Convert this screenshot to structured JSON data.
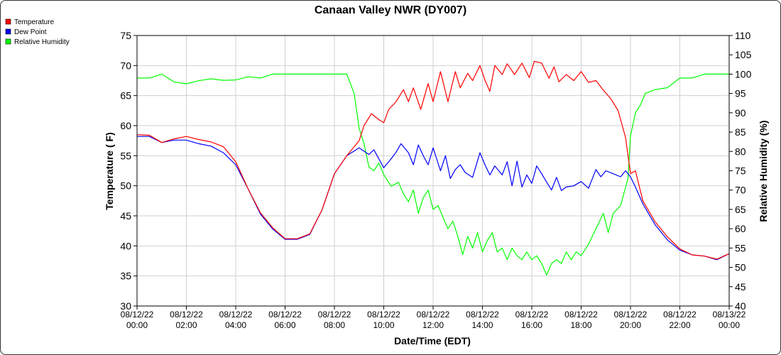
{
  "chart_data": {
    "type": "line",
    "title": "Canaan Valley NWR (DY007)",
    "xlabel": "Date/Time (EDT)",
    "ylabel_left": "Temperature ( F)",
    "ylabel_right": "Relative Humidity (%)",
    "ylim_left": [
      30,
      75
    ],
    "ylim_right": [
      40,
      110
    ],
    "yticks_left": [
      30,
      35,
      40,
      45,
      50,
      55,
      60,
      65,
      70,
      75
    ],
    "yticks_right": [
      40,
      45,
      50,
      55,
      60,
      65,
      70,
      75,
      80,
      85,
      90,
      95,
      100,
      105,
      110
    ],
    "xlim_hours": [
      0,
      24
    ],
    "xticks": [
      {
        "date": "08/12/22",
        "time": "00:00"
      },
      {
        "date": "08/12/22",
        "time": "02:00"
      },
      {
        "date": "08/12/22",
        "time": "04:00"
      },
      {
        "date": "08/12/22",
        "time": "06:00"
      },
      {
        "date": "08/12/22",
        "time": "08:00"
      },
      {
        "date": "08/12/22",
        "time": "10:00"
      },
      {
        "date": "08/12/22",
        "time": "12:00"
      },
      {
        "date": "08/12/22",
        "time": "14:00"
      },
      {
        "date": "08/12/22",
        "time": "16:00"
      },
      {
        "date": "08/12/22",
        "time": "18:00"
      },
      {
        "date": "08/12/22",
        "time": "20:00"
      },
      {
        "date": "08/12/22",
        "time": "22:00"
      },
      {
        "date": "08/13/22",
        "time": "00:00"
      }
    ],
    "grid": true,
    "legend_position": "top-left",
    "series": [
      {
        "name": "Temperature",
        "axis": "left",
        "color": "#ff0000",
        "points": [
          [
            0,
            58.5
          ],
          [
            0.5,
            58.4
          ],
          [
            1,
            57.2
          ],
          [
            1.5,
            57.8
          ],
          [
            2,
            58.2
          ],
          [
            2.5,
            57.7
          ],
          [
            3,
            57.3
          ],
          [
            3.5,
            56.5
          ],
          [
            4,
            54
          ],
          [
            4.5,
            49.5
          ],
          [
            5,
            45.5
          ],
          [
            5.5,
            43
          ],
          [
            6,
            41.2
          ],
          [
            6.5,
            41.2
          ],
          [
            7,
            42
          ],
          [
            7.5,
            46
          ],
          [
            8,
            52
          ],
          [
            8.5,
            55
          ],
          [
            9,
            57.5
          ],
          [
            9.2,
            60
          ],
          [
            9.5,
            62
          ],
          [
            9.8,
            61
          ],
          [
            10,
            60.5
          ],
          [
            10.2,
            62.7
          ],
          [
            10.5,
            64
          ],
          [
            10.8,
            66
          ],
          [
            11,
            64
          ],
          [
            11.2,
            66.3
          ],
          [
            11.5,
            62.7
          ],
          [
            11.8,
            67
          ],
          [
            12,
            64
          ],
          [
            12.3,
            69
          ],
          [
            12.6,
            64
          ],
          [
            12.9,
            69
          ],
          [
            13.1,
            66.3
          ],
          [
            13.4,
            68.7
          ],
          [
            13.6,
            67.5
          ],
          [
            13.9,
            70
          ],
          [
            14.1,
            67.6
          ],
          [
            14.3,
            65.7
          ],
          [
            14.5,
            70
          ],
          [
            14.8,
            68.5
          ],
          [
            15,
            70.3
          ],
          [
            15.3,
            68.5
          ],
          [
            15.6,
            70.4
          ],
          [
            15.9,
            68
          ],
          [
            16.1,
            70.7
          ],
          [
            16.4,
            70.4
          ],
          [
            16.7,
            67.9
          ],
          [
            16.9,
            69.8
          ],
          [
            17.1,
            67.3
          ],
          [
            17.4,
            68.5
          ],
          [
            17.7,
            67.5
          ],
          [
            18,
            69
          ],
          [
            18.3,
            67.2
          ],
          [
            18.6,
            67.5
          ],
          [
            18.9,
            65.9
          ],
          [
            19.2,
            64.5
          ],
          [
            19.5,
            62.5
          ],
          [
            19.8,
            58
          ],
          [
            20,
            52
          ],
          [
            20.2,
            52.5
          ],
          [
            20.5,
            47.5
          ],
          [
            21,
            44
          ],
          [
            21.5,
            41.5
          ],
          [
            22,
            39.5
          ],
          [
            22.5,
            38.5
          ],
          [
            23,
            38.3
          ],
          [
            23.5,
            37.8
          ],
          [
            24,
            38.7
          ]
        ]
      },
      {
        "name": "Dew Point",
        "axis": "left",
        "color": "#0000ff",
        "points": [
          [
            0,
            58.2
          ],
          [
            0.5,
            58.2
          ],
          [
            1,
            57.2
          ],
          [
            1.5,
            57.6
          ],
          [
            2,
            57.6
          ],
          [
            2.5,
            57
          ],
          [
            3,
            56.6
          ],
          [
            3.5,
            55.5
          ],
          [
            4,
            53.5
          ],
          [
            4.5,
            49.5
          ],
          [
            5,
            45.3
          ],
          [
            5.5,
            42.8
          ],
          [
            6,
            41.1
          ],
          [
            6.5,
            41.1
          ],
          [
            7,
            41.9
          ],
          [
            7.5,
            46
          ],
          [
            8,
            52
          ],
          [
            8.5,
            55
          ],
          [
            9,
            56.3
          ],
          [
            9.4,
            55.2
          ],
          [
            9.6,
            56
          ],
          [
            10,
            53
          ],
          [
            10.3,
            54.5
          ],
          [
            10.5,
            55.6
          ],
          [
            10.7,
            57
          ],
          [
            11,
            55.5
          ],
          [
            11.2,
            53.5
          ],
          [
            11.4,
            56.8
          ],
          [
            11.6,
            55
          ],
          [
            11.8,
            53.5
          ],
          [
            12,
            56.3
          ],
          [
            12.3,
            52.5
          ],
          [
            12.5,
            55
          ],
          [
            12.7,
            51.2
          ],
          [
            12.9,
            52.7
          ],
          [
            13.1,
            53.5
          ],
          [
            13.3,
            52.2
          ],
          [
            13.6,
            51.4
          ],
          [
            13.9,
            55.5
          ],
          [
            14.1,
            53.5
          ],
          [
            14.3,
            51.8
          ],
          [
            14.5,
            53.3
          ],
          [
            14.8,
            51.8
          ],
          [
            15,
            54
          ],
          [
            15.2,
            50
          ],
          [
            15.4,
            54.1
          ],
          [
            15.6,
            49.8
          ],
          [
            15.8,
            51.8
          ],
          [
            16,
            50.4
          ],
          [
            16.2,
            53.3
          ],
          [
            16.4,
            52
          ],
          [
            16.6,
            50.6
          ],
          [
            16.8,
            49.3
          ],
          [
            17,
            51.4
          ],
          [
            17.2,
            49.2
          ],
          [
            17.4,
            49.8
          ],
          [
            17.7,
            50
          ],
          [
            18,
            50.7
          ],
          [
            18.3,
            49.6
          ],
          [
            18.6,
            52.7
          ],
          [
            18.8,
            51.5
          ],
          [
            19,
            52.5
          ],
          [
            19.3,
            52
          ],
          [
            19.6,
            51.5
          ],
          [
            19.8,
            52.5
          ],
          [
            20,
            51.5
          ],
          [
            20.2,
            49.8
          ],
          [
            20.5,
            47
          ],
          [
            21,
            43.5
          ],
          [
            21.5,
            41
          ],
          [
            22,
            39.3
          ],
          [
            22.5,
            38.5
          ],
          [
            23,
            38.3
          ],
          [
            23.5,
            37.7
          ],
          [
            24,
            38.7
          ]
        ]
      },
      {
        "name": "Relative Humidity",
        "axis": "right",
        "color": "#00ff00",
        "points": [
          [
            0,
            99
          ],
          [
            0.5,
            99
          ],
          [
            1,
            100
          ],
          [
            1.5,
            98
          ],
          [
            2,
            97.5
          ],
          [
            2.5,
            98.3
          ],
          [
            3,
            98.8
          ],
          [
            3.5,
            98.4
          ],
          [
            4,
            98.5
          ],
          [
            4.5,
            99.3
          ],
          [
            5,
            99
          ],
          [
            5.5,
            100
          ],
          [
            6,
            100
          ],
          [
            6.5,
            100
          ],
          [
            7,
            100
          ],
          [
            7.5,
            100
          ],
          [
            8,
            100
          ],
          [
            8.5,
            100
          ],
          [
            8.8,
            95
          ],
          [
            9,
            86
          ],
          [
            9.2,
            82
          ],
          [
            9.4,
            76
          ],
          [
            9.6,
            75
          ],
          [
            9.8,
            77
          ],
          [
            10,
            74
          ],
          [
            10.3,
            71
          ],
          [
            10.6,
            72
          ],
          [
            10.8,
            69
          ],
          [
            11,
            67
          ],
          [
            11.2,
            70
          ],
          [
            11.4,
            64
          ],
          [
            11.6,
            68
          ],
          [
            11.8,
            70
          ],
          [
            12,
            65
          ],
          [
            12.2,
            66
          ],
          [
            12.4,
            63
          ],
          [
            12.6,
            60
          ],
          [
            12.8,
            62
          ],
          [
            13,
            58
          ],
          [
            13.2,
            53.3
          ],
          [
            13.4,
            58
          ],
          [
            13.6,
            55
          ],
          [
            13.8,
            59
          ],
          [
            14,
            54
          ],
          [
            14.2,
            57
          ],
          [
            14.4,
            59
          ],
          [
            14.6,
            54
          ],
          [
            14.8,
            55
          ],
          [
            15,
            52
          ],
          [
            15.2,
            55
          ],
          [
            15.4,
            53
          ],
          [
            15.6,
            52
          ],
          [
            15.8,
            54
          ],
          [
            16,
            52
          ],
          [
            16.2,
            53
          ],
          [
            16.4,
            51
          ],
          [
            16.6,
            48
          ],
          [
            16.8,
            51
          ],
          [
            17,
            52
          ],
          [
            17.2,
            51
          ],
          [
            17.4,
            54
          ],
          [
            17.6,
            52
          ],
          [
            17.8,
            54
          ],
          [
            18,
            53
          ],
          [
            18.3,
            56
          ],
          [
            18.6,
            60
          ],
          [
            18.9,
            64
          ],
          [
            19.1,
            59
          ],
          [
            19.3,
            64
          ],
          [
            19.6,
            66
          ],
          [
            19.9,
            73
          ],
          [
            20,
            84
          ],
          [
            20.2,
            90
          ],
          [
            20.4,
            92
          ],
          [
            20.6,
            95
          ],
          [
            21,
            96
          ],
          [
            21.5,
            96.5
          ],
          [
            22,
            99
          ],
          [
            22.5,
            99
          ],
          [
            23,
            100
          ],
          [
            23.5,
            100
          ],
          [
            24,
            100
          ]
        ]
      }
    ]
  }
}
